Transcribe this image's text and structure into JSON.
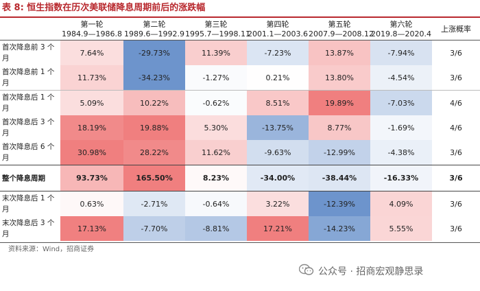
{
  "title": "表 8: 恒生指数在历次美联储降息周期前后的涨跌幅",
  "header": {
    "rounds": [
      {
        "name": "第一轮",
        "period": "1984.9—1986.8"
      },
      {
        "name": "第二轮",
        "period": "1989.6—1992.9"
      },
      {
        "name": "第三轮",
        "period": "1995.7—1998.11"
      },
      {
        "name": "第四轮",
        "period": "2001.1—2003.6"
      },
      {
        "name": "第五轮",
        "period": "2007.9—2008.12"
      },
      {
        "name": "第六轮",
        "period": "2019.8—2020.4"
      }
    ],
    "prob_label": "上涨概率"
  },
  "rows": [
    {
      "label": "首次降息前 3 个月",
      "values": [
        "7.64%",
        "-29.73%",
        "11.39%",
        "-7.23%",
        "13.87%",
        "-7.94%"
      ],
      "prob": "3/6",
      "bold": false
    },
    {
      "label": "首次降息前 1 个月",
      "values": [
        "11.73%",
        "-34.23%",
        "-1.27%",
        "0.21%",
        "13.80%",
        "-4.54%"
      ],
      "prob": "3/6",
      "bold": false
    },
    {
      "label": "首次降息后 1 个月",
      "values": [
        "5.09%",
        "10.22%",
        "-0.62%",
        "8.51%",
        "19.89%",
        "-7.03%"
      ],
      "prob": "4/6",
      "bold": false
    },
    {
      "label": "首次降息后 3 个月",
      "values": [
        "18.19%",
        "19.88%",
        "5.30%",
        "-13.75%",
        "8.77%",
        "-1.69%"
      ],
      "prob": "4/6",
      "bold": false
    },
    {
      "label": "首次降息后 6 个月",
      "values": [
        "30.98%",
        "28.22%",
        "11.62%",
        "-9.63%",
        "-12.99%",
        "-4.38%"
      ],
      "prob": "3/6",
      "bold": false
    },
    {
      "label": "整个降息周期",
      "values": [
        "93.73%",
        "165.50%",
        "8.23%",
        "-34.00%",
        "-38.44%",
        "-16.33%"
      ],
      "prob": "3/6",
      "bold": true
    },
    {
      "label": "末次降息后 1 个月",
      "values": [
        "0.63%",
        "-2.71%",
        "-0.64%",
        "3.22%",
        "-12.39%",
        "4.09%"
      ],
      "prob": "3/6",
      "bold": false
    },
    {
      "label": "末次降息后 3 个月",
      "values": [
        "17.13%",
        "-7.70%",
        "-8.81%",
        "17.21%",
        "-14.23%",
        "5.55%"
      ],
      "prob": "3/6",
      "bold": false
    }
  ],
  "colors": {
    "title": "#b8282d",
    "positive_max": "#f07f7f",
    "negative_max": "#6d94cc"
  },
  "source": "资料来源：Wind，招商证券",
  "watermark": "公众号 · 招商宏观静思录"
}
